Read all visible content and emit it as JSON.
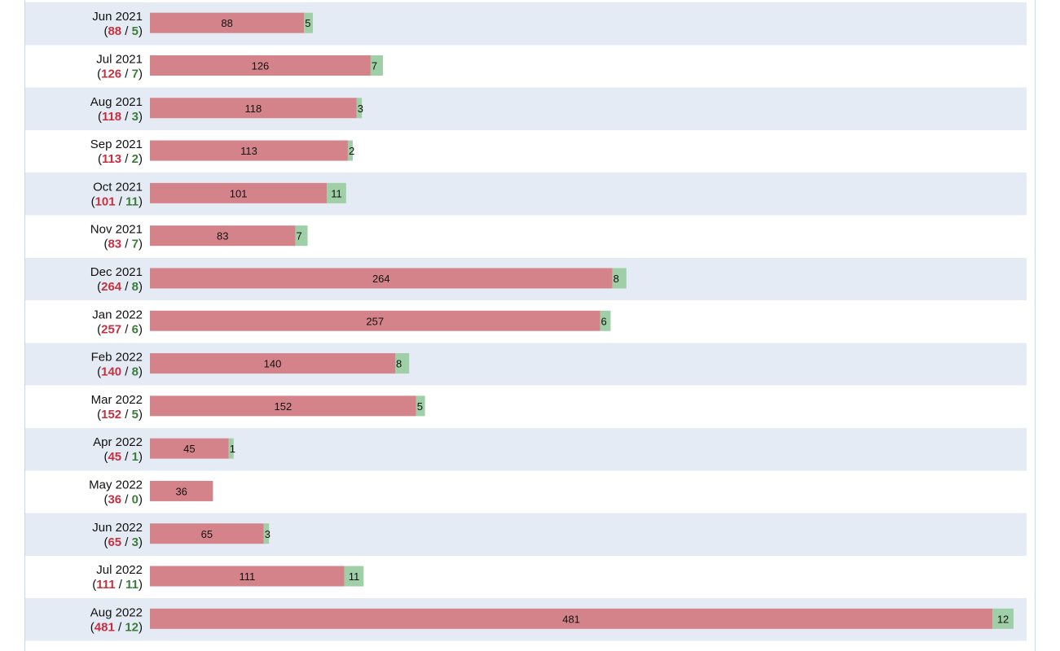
{
  "colors": {
    "red": "#d5838b",
    "green": "#9fcfa6",
    "red_text": "#c8303f",
    "green_text": "#3a7d3a",
    "row_alt": "#e4ebf4"
  },
  "chart_data": {
    "type": "bar",
    "orientation": "horizontal",
    "stacked": true,
    "categories": [
      "Jun 2021",
      "Jul 2021",
      "Aug 2021",
      "Sep 2021",
      "Oct 2021",
      "Nov 2021",
      "Dec 2021",
      "Jan 2022",
      "Feb 2022",
      "Mar 2022",
      "Apr 2022",
      "May 2022",
      "Jun 2022",
      "Jul 2022",
      "Aug 2022"
    ],
    "series": [
      {
        "color": "#d5838b",
        "values": [
          88,
          126,
          118,
          113,
          101,
          83,
          264,
          257,
          140,
          152,
          45,
          36,
          65,
          111,
          481
        ]
      },
      {
        "color": "#9fcfa6",
        "values": [
          5,
          7,
          3,
          2,
          11,
          7,
          8,
          6,
          8,
          5,
          1,
          0,
          3,
          11,
          12
        ]
      }
    ],
    "grid": false,
    "legend": "none"
  }
}
